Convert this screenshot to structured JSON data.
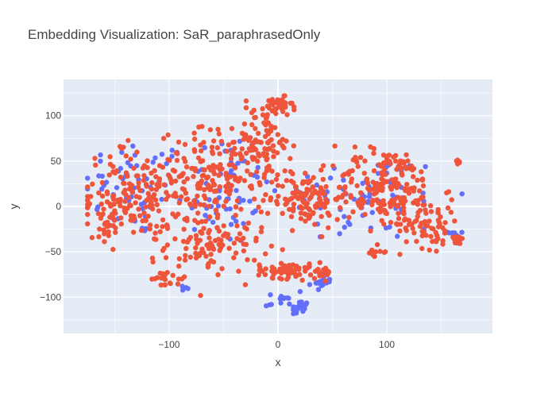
{
  "chart_data": {
    "type": "scatter",
    "title": "Embedding Visualization: SaR_paraphrasedOnly",
    "xlabel": "x",
    "ylabel": "y",
    "xlim": [
      -197,
      197
    ],
    "ylim": [
      -140,
      140
    ],
    "xticks": [
      -100,
      0,
      100
    ],
    "yticks": [
      -100,
      -50,
      0,
      50,
      100
    ],
    "xtick_labels": [
      "−100",
      "0",
      "100"
    ],
    "ytick_labels": [
      "−100",
      "−50",
      "0",
      "50",
      "100"
    ],
    "grid": true,
    "legend": false,
    "colors": {
      "plot_bg": "#e5ecf6",
      "grid": "#ffffff",
      "series_blue": "#636efa",
      "series_red": "#ef553b"
    },
    "series": [
      {
        "color": "#636efa",
        "clusters": [
          {
            "center": [
              -130,
              20
            ],
            "spread": [
              45,
              50
            ],
            "count": 55
          },
          {
            "center": [
              -50,
              20
            ],
            "spread": [
              40,
              60
            ],
            "count": 60
          },
          {
            "center": [
              80,
              10
            ],
            "spread": [
              70,
              45
            ],
            "count": 70
          },
          {
            "center": [
              20,
              -112
            ],
            "spread": [
              7,
              8
            ],
            "count": 28
          },
          {
            "center": [
              6,
              -100
            ],
            "spread": [
              4,
              5
            ],
            "count": 8
          },
          {
            "center": [
              40,
              -82
            ],
            "spread": [
              8,
              9
            ],
            "count": 22
          },
          {
            "center": [
              163,
              -33
            ],
            "spread": [
              6,
              7
            ],
            "count": 10
          },
          {
            "center": [
              -88,
              -90
            ],
            "spread": [
              4,
              4
            ],
            "count": 4
          },
          {
            "center": [
              -10,
              -105
            ],
            "spread": [
              4,
              6
            ],
            "count": 4
          }
        ]
      },
      {
        "color": "#ef553b",
        "clusters": [
          {
            "center": [
              -135,
              10
            ],
            "spread": [
              40,
              45
            ],
            "count": 150
          },
          {
            "center": [
              -60,
              30
            ],
            "spread": [
              45,
              50
            ],
            "count": 200
          },
          {
            "center": [
              -60,
              -45
            ],
            "spread": [
              40,
              25
            ],
            "count": 90
          },
          {
            "center": [
              -15,
              70
            ],
            "spread": [
              25,
              35
            ],
            "count": 80
          },
          {
            "center": [
              0,
              110
            ],
            "spread": [
              12,
              10
            ],
            "count": 35
          },
          {
            "center": [
              25,
              10
            ],
            "spread": [
              30,
              30
            ],
            "count": 110
          },
          {
            "center": [
              100,
              20
            ],
            "spread": [
              45,
              40
            ],
            "count": 200
          },
          {
            "center": [
              140,
              -20
            ],
            "spread": [
              25,
              25
            ],
            "count": 60
          },
          {
            "center": [
              5,
              -70
            ],
            "spread": [
              22,
              8
            ],
            "count": 60
          },
          {
            "center": [
              40,
              -72
            ],
            "spread": [
              10,
              8
            ],
            "count": 25
          },
          {
            "center": [
              -100,
              -80
            ],
            "spread": [
              15,
              10
            ],
            "count": 20
          },
          {
            "center": [
              165,
              -35
            ],
            "spread": [
              5,
              4
            ],
            "count": 12
          },
          {
            "center": [
              -155,
              -20
            ],
            "spread": [
              10,
              10
            ],
            "count": 20
          },
          {
            "center": [
              165,
              48
            ],
            "spread": [
              3,
              3
            ],
            "count": 6
          },
          {
            "center": [
              -145,
              65
            ],
            "spread": [
              3,
              2
            ],
            "count": 4
          },
          {
            "center": [
              90,
              -50
            ],
            "spread": [
              10,
              6
            ],
            "count": 10
          }
        ]
      }
    ]
  }
}
